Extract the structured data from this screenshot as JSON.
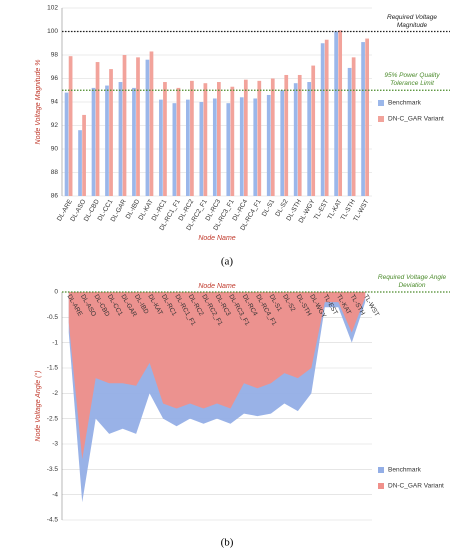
{
  "chart_data": [
    {
      "type": "bar",
      "caption": "(a)",
      "y_label": "Node Voltage Magnitude %",
      "x_label": "Node Name",
      "categories": [
        "DL-ARE",
        "DL-ASO",
        "DL-CBD",
        "DL-CC1",
        "DL-GAR",
        "DL-IBD",
        "DL-KAT",
        "DL-RC1",
        "DL-RC1_F1",
        "DL-RC2",
        "DL-RC2_F1",
        "DL-RC3",
        "DL-RC3_F1",
        "DL-RC4",
        "DL-RC4_F1",
        "DL-S1",
        "DL-S2",
        "DL-STH",
        "DL-WGY",
        "TL-EST",
        "TL-KAT",
        "TL-STH",
        "TL-WST"
      ],
      "series": [
        {
          "name": "Benchmark",
          "color": "#9bb7ea",
          "values": [
            94.8,
            91.6,
            95.2,
            95.4,
            95.7,
            95.2,
            97.6,
            94.2,
            93.9,
            94.2,
            94.0,
            94.3,
            93.9,
            94.4,
            94.3,
            94.6,
            95.0,
            95.6,
            95.7,
            99.0,
            100.0,
            96.9,
            99.1
          ]
        },
        {
          "name": "DN-C_GAR Variant",
          "color": "#f2a39b",
          "values": [
            97.9,
            92.9,
            97.4,
            96.8,
            98.0,
            97.8,
            98.3,
            95.7,
            95.2,
            95.8,
            95.6,
            95.7,
            95.3,
            95.9,
            95.8,
            96.0,
            96.3,
            96.3,
            97.1,
            99.3,
            100.1,
            97.8,
            99.4
          ]
        }
      ],
      "ylim": [
        86,
        102
      ],
      "yticks": [
        86,
        88,
        90,
        92,
        94,
        96,
        98,
        100,
        102
      ],
      "grid": true,
      "reference_lines": [
        {
          "value": 100,
          "label": "Required Voltage Magnitude",
          "color": "#222222"
        },
        {
          "value": 95,
          "label": "95% Power Quality Tolerance Limit",
          "color": "#4a8a2a"
        }
      ]
    },
    {
      "type": "area",
      "caption": "(b)",
      "y_label": "Node Voltage Angle (°)",
      "x_label": "Node Name",
      "categories": [
        "DL-ARE",
        "DL-ASO",
        "DL-CBD",
        "DL-CC1",
        "DL-GAR",
        "DL-IBD",
        "DL-KAT",
        "DL-RC1",
        "DL-RC1_F1",
        "DL-RC2",
        "DL-RC2_F1",
        "DL-RC3",
        "DL-RC3_F1",
        "DL-RC4",
        "DL-RC4_F1",
        "DL-S1",
        "DL-S2",
        "DL-STH",
        "DL-WGY",
        "TL-EST",
        "TL-KAT",
        "TL-STH",
        "TL-WST"
      ],
      "series": [
        {
          "name": "Benchmark",
          "color": "#93aee6",
          "values": [
            -0.8,
            -4.15,
            -2.5,
            -2.8,
            -2.7,
            -2.8,
            -2.0,
            -2.5,
            -2.65,
            -2.5,
            -2.6,
            -2.5,
            -2.6,
            -2.4,
            -2.45,
            -2.4,
            -2.2,
            -2.35,
            -2.0,
            -0.3,
            -0.3,
            -1.0,
            -0.2
          ]
        },
        {
          "name": "DN-C_GAR Variant",
          "color": "#f0908a",
          "values": [
            -0.6,
            -3.3,
            -1.7,
            -1.8,
            -1.8,
            -1.85,
            -1.4,
            -2.2,
            -2.3,
            -2.2,
            -2.3,
            -2.2,
            -2.3,
            -1.8,
            -1.9,
            -1.8,
            -1.6,
            -1.7,
            -1.5,
            -0.2,
            -0.2,
            -0.8,
            -0.1
          ]
        }
      ],
      "ylim": [
        -4.5,
        0
      ],
      "yticks": [
        0,
        -0.5,
        -1,
        -1.5,
        -2,
        -2.5,
        -3,
        -3.5,
        -4,
        -4.5
      ],
      "grid": true,
      "reference_lines": [
        {
          "value": 0,
          "label": "Required Voltage Angle Deviation",
          "color": "#4a8a2a"
        }
      ]
    }
  ]
}
